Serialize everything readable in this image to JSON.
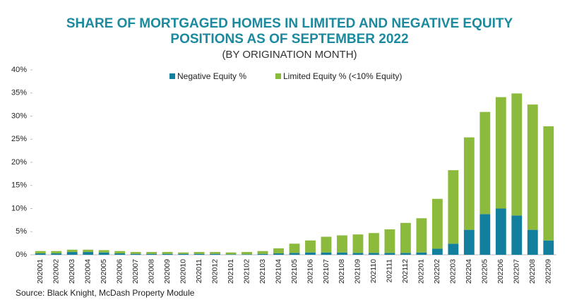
{
  "chart_data": {
    "type": "stacked_bar",
    "title": "SHARE OF MORTGAGED HOMES IN LIMITED AND NEGATIVE EQUITY",
    "title_line2": "POSITIONS AS OF SEPTEMBER 2022",
    "subtitle": "(BY ORIGINATION MONTH)",
    "source": "Source: Black Knight, McDash Property Module",
    "categories": [
      "202001",
      "202002",
      "202003",
      "202004",
      "202005",
      "202006",
      "202007",
      "202008",
      "202009",
      "202010",
      "202011",
      "202012",
      "202101",
      "202102",
      "202103",
      "202104",
      "202105",
      "202106",
      "202107",
      "202108",
      "202109",
      "202110",
      "202111",
      "202112",
      "202201",
      "202202",
      "202203",
      "202204",
      "202205",
      "202206",
      "202207",
      "202208",
      "202209"
    ],
    "series": [
      {
        "name": "Negative Equity %",
        "color": "#137f9e",
        "values": [
          0.3,
          0.3,
          0.6,
          0.6,
          0.5,
          0.3,
          0.2,
          0.2,
          0.2,
          0.2,
          0.2,
          0.2,
          0.1,
          0.1,
          0.2,
          0.3,
          0.4,
          0.5,
          0.5,
          0.5,
          0.4,
          0.4,
          0.4,
          0.4,
          0.5,
          1.3,
          2.4,
          5.4,
          8.8,
          10.0,
          8.5,
          5.4,
          3.1
        ]
      },
      {
        "name": "Limited Equity % (<10% Equity)",
        "color": "#8cba3d",
        "values": [
          0.5,
          0.5,
          0.5,
          0.5,
          0.5,
          0.5,
          0.4,
          0.4,
          0.4,
          0.3,
          0.4,
          0.4,
          0.4,
          0.5,
          0.6,
          1.1,
          2.0,
          2.6,
          3.4,
          3.7,
          4.0,
          4.3,
          5.1,
          6.5,
          7.4,
          10.8,
          15.9,
          20.0,
          22.1,
          24.1,
          26.4,
          27.1,
          24.7
        ]
      }
    ],
    "ylim": [
      0,
      40
    ],
    "yticks": [
      {
        "value": 0,
        "label": "0%"
      },
      {
        "value": 5,
        "label": "5%"
      },
      {
        "value": 10,
        "label": "10%"
      },
      {
        "value": 15,
        "label": "15%"
      },
      {
        "value": 20,
        "label": "20%"
      },
      {
        "value": 25,
        "label": "25%"
      },
      {
        "value": 30,
        "label": "30%"
      },
      {
        "value": 35,
        "label": "35%"
      },
      {
        "value": 40,
        "label": "40%"
      }
    ],
    "legend": "top"
  }
}
